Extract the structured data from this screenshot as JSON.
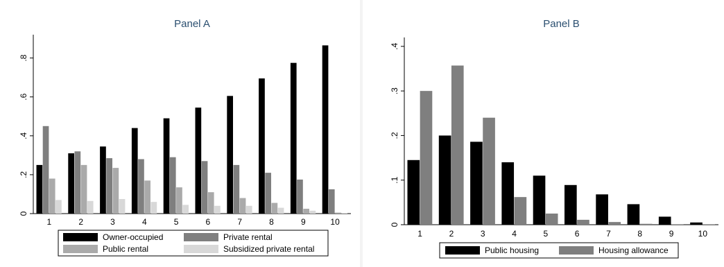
{
  "chart_data": [
    {
      "type": "bar",
      "title": "Panel A",
      "xlabel": "",
      "ylabel": "",
      "ylim": [
        0,
        0.92
      ],
      "yticks": [
        "0",
        ".2",
        ".4",
        ".6",
        ".8"
      ],
      "ytick_values": [
        0,
        0.2,
        0.4,
        0.6,
        0.8
      ],
      "categories": [
        "1",
        "2",
        "3",
        "4",
        "5",
        "6",
        "7",
        "8",
        "9",
        "10"
      ],
      "series": [
        {
          "name": "Owner-occupied",
          "color": "#000000",
          "values": [
            0.25,
            0.31,
            0.345,
            0.44,
            0.49,
            0.545,
            0.605,
            0.695,
            0.775,
            0.865
          ]
        },
        {
          "name": "Private rental",
          "color": "#7f7f7f",
          "values": [
            0.45,
            0.32,
            0.285,
            0.28,
            0.29,
            0.27,
            0.25,
            0.21,
            0.175,
            0.125
          ]
        },
        {
          "name": "Public rental",
          "color": "#aaaaaa",
          "values": [
            0.18,
            0.25,
            0.235,
            0.17,
            0.135,
            0.11,
            0.08,
            0.055,
            0.025,
            0.005
          ]
        },
        {
          "name": "Subsidized private rental",
          "color": "#d8d8d8",
          "values": [
            0.07,
            0.065,
            0.075,
            0.06,
            0.045,
            0.04,
            0.04,
            0.03,
            0.015,
            0.003
          ]
        }
      ],
      "legend": "bottom",
      "grid": false
    },
    {
      "type": "bar",
      "title": "Panel B",
      "xlabel": "",
      "ylabel": "",
      "ylim": [
        0,
        0.42
      ],
      "yticks": [
        "0",
        ".1",
        ".2",
        ".3",
        ".4"
      ],
      "ytick_values": [
        0,
        0.1,
        0.2,
        0.3,
        0.4
      ],
      "categories": [
        "1",
        "2",
        "3",
        "4",
        "5",
        "6",
        "7",
        "8",
        "9",
        "10"
      ],
      "series": [
        {
          "name": "Public housing",
          "color": "#000000",
          "values": [
            0.145,
            0.2,
            0.186,
            0.14,
            0.11,
            0.089,
            0.068,
            0.046,
            0.018,
            0.005
          ]
        },
        {
          "name": "Housing allowance",
          "color": "#7f7f7f",
          "values": [
            0.3,
            0.357,
            0.24,
            0.062,
            0.025,
            0.011,
            0.006,
            0.002,
            0.001,
            0.001
          ]
        }
      ],
      "legend": "bottom",
      "grid": false
    }
  ]
}
